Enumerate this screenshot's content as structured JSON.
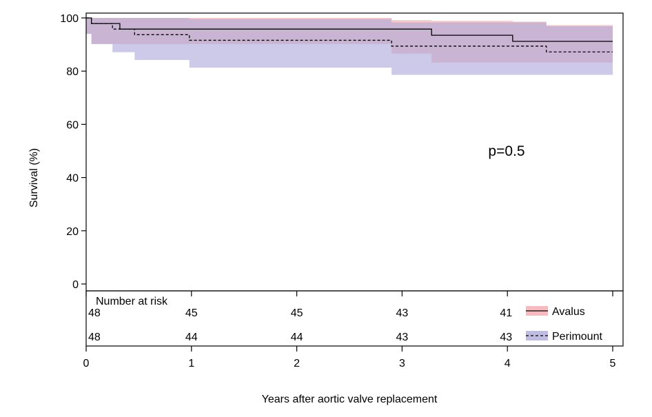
{
  "chart_data": {
    "type": "line",
    "subtype": "kaplan-meier-survival",
    "title": "",
    "xlabel": "Years after aortic valve replacement",
    "ylabel": "Survival (%)",
    "xlim": [
      0,
      5
    ],
    "ylim": [
      0,
      100
    ],
    "x_ticks": [
      0,
      1,
      2,
      3,
      4,
      5
    ],
    "y_ticks": [
      0,
      20,
      40,
      60,
      80,
      100
    ],
    "grid": false,
    "legend_position": "bottom-right",
    "annotation": "p=0.5",
    "series": [
      {
        "name": "Avalus",
        "line_style": "solid",
        "line_color": "#000000",
        "band_color": "#f4a3aa",
        "steps": [
          {
            "x": 0.0,
            "y": 100
          },
          {
            "x": 0.05,
            "y": 97.9
          },
          {
            "x": 0.32,
            "y": 95.8
          },
          {
            "x": 3.28,
            "y": 93.5
          },
          {
            "x": 4.05,
            "y": 91.2
          },
          {
            "x": 5.0,
            "y": 91.2
          }
        ],
        "ci_steps": [
          {
            "x": 0.0,
            "lower": 100,
            "upper": 100
          },
          {
            "x": 0.05,
            "lower": 94.0,
            "upper": 100
          },
          {
            "x": 0.32,
            "lower": 90.2,
            "upper": 100
          },
          {
            "x": 2.9,
            "lower": 90.2,
            "upper": 99.2
          },
          {
            "x": 3.28,
            "lower": 86.6,
            "upper": 98.9
          },
          {
            "x": 4.05,
            "lower": 83.2,
            "upper": 98.6
          },
          {
            "x": 4.37,
            "lower": 83.2,
            "upper": 97.3
          },
          {
            "x": 5.0,
            "lower": 83.2,
            "upper": 97.3
          }
        ]
      },
      {
        "name": "Perimount",
        "line_style": "dashed",
        "line_color": "#000000",
        "band_color": "#aaa6d8",
        "steps": [
          {
            "x": 0.0,
            "y": 100
          },
          {
            "x": 0.05,
            "y": 97.9
          },
          {
            "x": 0.25,
            "y": 95.8
          },
          {
            "x": 0.46,
            "y": 93.7
          },
          {
            "x": 0.98,
            "y": 91.6
          },
          {
            "x": 2.9,
            "y": 89.4
          },
          {
            "x": 4.37,
            "y": 87.2
          },
          {
            "x": 5.0,
            "y": 87.2
          }
        ],
        "ci_steps": [
          {
            "x": 0.0,
            "lower": 100,
            "upper": 100
          },
          {
            "x": 0.05,
            "lower": 94.0,
            "upper": 100
          },
          {
            "x": 0.25,
            "lower": 90.2,
            "upper": 100
          },
          {
            "x": 0.46,
            "lower": 87.1,
            "upper": 100
          },
          {
            "x": 0.98,
            "lower": 84.2,
            "upper": 99.6
          },
          {
            "x": 2.9,
            "lower": 81.3,
            "upper": 98.3
          },
          {
            "x": 4.37,
            "lower": 78.6,
            "upper": 96.9
          },
          {
            "x": 5.0,
            "lower": 78.6,
            "upper": 96.9
          }
        ]
      }
    ],
    "risk_table": {
      "title": "Number at risk",
      "times": [
        0,
        1,
        2,
        3,
        4
      ],
      "rows": [
        {
          "name": "Avalus",
          "counts": [
            "48",
            "45",
            "45",
            "43",
            "41"
          ]
        },
        {
          "name": "Perimount",
          "counts": [
            "48",
            "44",
            "44",
            "43",
            "43"
          ]
        }
      ]
    }
  }
}
